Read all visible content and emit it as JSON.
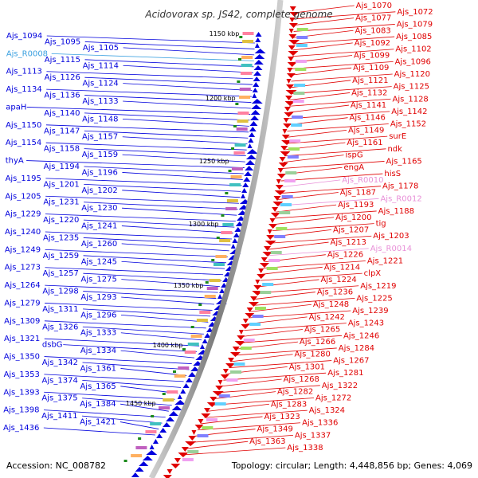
{
  "title": "Acidovorax sp. JS42, complete genome",
  "footer": {
    "accession": "Accession: NC_008782",
    "summary": "Topology: circular; Length: 4,448,856 bp; Genes: 4,069"
  },
  "colors": {
    "forward": "#e00000",
    "reverse": "#0000dd",
    "rna_forward": "#e890d8",
    "rna_reverse": "#3aa0e0",
    "backbone": "#999999"
  },
  "kbp_marks": [
    "1150 kbp",
    "1200 kbp",
    "1250 kbp",
    "1300 kbp",
    "1350 kbp",
    "1400 kbp",
    "1450 kbp"
  ],
  "left_labels": [
    "Ajs_1094",
    "Ajs_1095",
    "Ajs_1105",
    "Ajs_R0008",
    "Ajs_1115",
    "Ajs_1114",
    "Ajs_1113",
    "Ajs_1126",
    "Ajs_1124",
    "Ajs_1134",
    "Ajs_1136",
    "Ajs_1133",
    "apaH",
    "Ajs_1140",
    "Ajs_1148",
    "Ajs_1150",
    "Ajs_1147",
    "Ajs_1157",
    "Ajs_1154",
    "Ajs_1158",
    "Ajs_1159",
    "thyA",
    "Ajs_1194",
    "Ajs_1196",
    "Ajs_1195",
    "Ajs_1201",
    "Ajs_1202",
    "Ajs_1205",
    "Ajs_1231",
    "Ajs_1230",
    "Ajs_1229",
    "Ajs_1220",
    "Ajs_1241",
    "Ajs_1240",
    "Ajs_1235",
    "Ajs_1260",
    "Ajs_1249",
    "Ajs_1259",
    "Ajs_1245",
    "Ajs_1273",
    "Ajs_1257",
    "Ajs_1275",
    "Ajs_1264",
    "Ajs_1298",
    "Ajs_1293",
    "Ajs_1279",
    "Ajs_1311",
    "Ajs_1296",
    "Ajs_1309",
    "Ajs_1326",
    "Ajs_1333",
    "Ajs_1321",
    "dsbG",
    "Ajs_1334",
    "Ajs_1350",
    "Ajs_1342",
    "Ajs_1361",
    "Ajs_1353",
    "Ajs_1374",
    "Ajs_1365",
    "Ajs_1393",
    "Ajs_1375",
    "Ajs_1384",
    "Ajs_1398",
    "Ajs_1411",
    "Ajs_1421",
    "Ajs_1436"
  ],
  "right_labels": [
    "Ajs_1070",
    "Ajs_1072",
    "Ajs_1077",
    "Ajs_1079",
    "Ajs_1083",
    "Ajs_1085",
    "Ajs_1092",
    "Ajs_1102",
    "Ajs_1099",
    "Ajs_1096",
    "Ajs_1109",
    "Ajs_1120",
    "Ajs_1121",
    "Ajs_1125",
    "Ajs_1132",
    "Ajs_1128",
    "Ajs_1141",
    "Ajs_1142",
    "Ajs_1146",
    "Ajs_1152",
    "Ajs_1149",
    "surE",
    "Ajs_1161",
    "ndk",
    "ispG",
    "Ajs_1165",
    "engA",
    "hisS",
    "Ajs_R0010",
    "Ajs_1178",
    "Ajs_1187",
    "Ajs_R0012",
    "Ajs_1193",
    "Ajs_1188",
    "Ajs_1200",
    "tig",
    "Ajs_1207",
    "Ajs_1203",
    "Ajs_1213",
    "Ajs_R0014",
    "Ajs_1226",
    "Ajs_1221",
    "Ajs_1214",
    "clpX",
    "Ajs_1224",
    "Ajs_1219",
    "Ajs_1236",
    "Ajs_1225",
    "Ajs_1248",
    "Ajs_1239",
    "Ajs_1242",
    "Ajs_1243",
    "Ajs_1265",
    "Ajs_1246",
    "Ajs_1266",
    "Ajs_1284",
    "Ajs_1280",
    "Ajs_1267",
    "Ajs_1301",
    "Ajs_1281",
    "Ajs_1268",
    "Ajs_1322",
    "Ajs_1282",
    "Ajs_1272",
    "Ajs_1283",
    "Ajs_1324",
    "Ajs_1323",
    "Ajs_1336",
    "Ajs_1349",
    "Ajs_1337",
    "Ajs_1363",
    "Ajs_1338"
  ],
  "pink_right_labels": [
    "Ajs_R0010",
    "Ajs_R0012",
    "Ajs_R0014"
  ],
  "cyan_left_labels": [
    "Ajs_R0008"
  ]
}
